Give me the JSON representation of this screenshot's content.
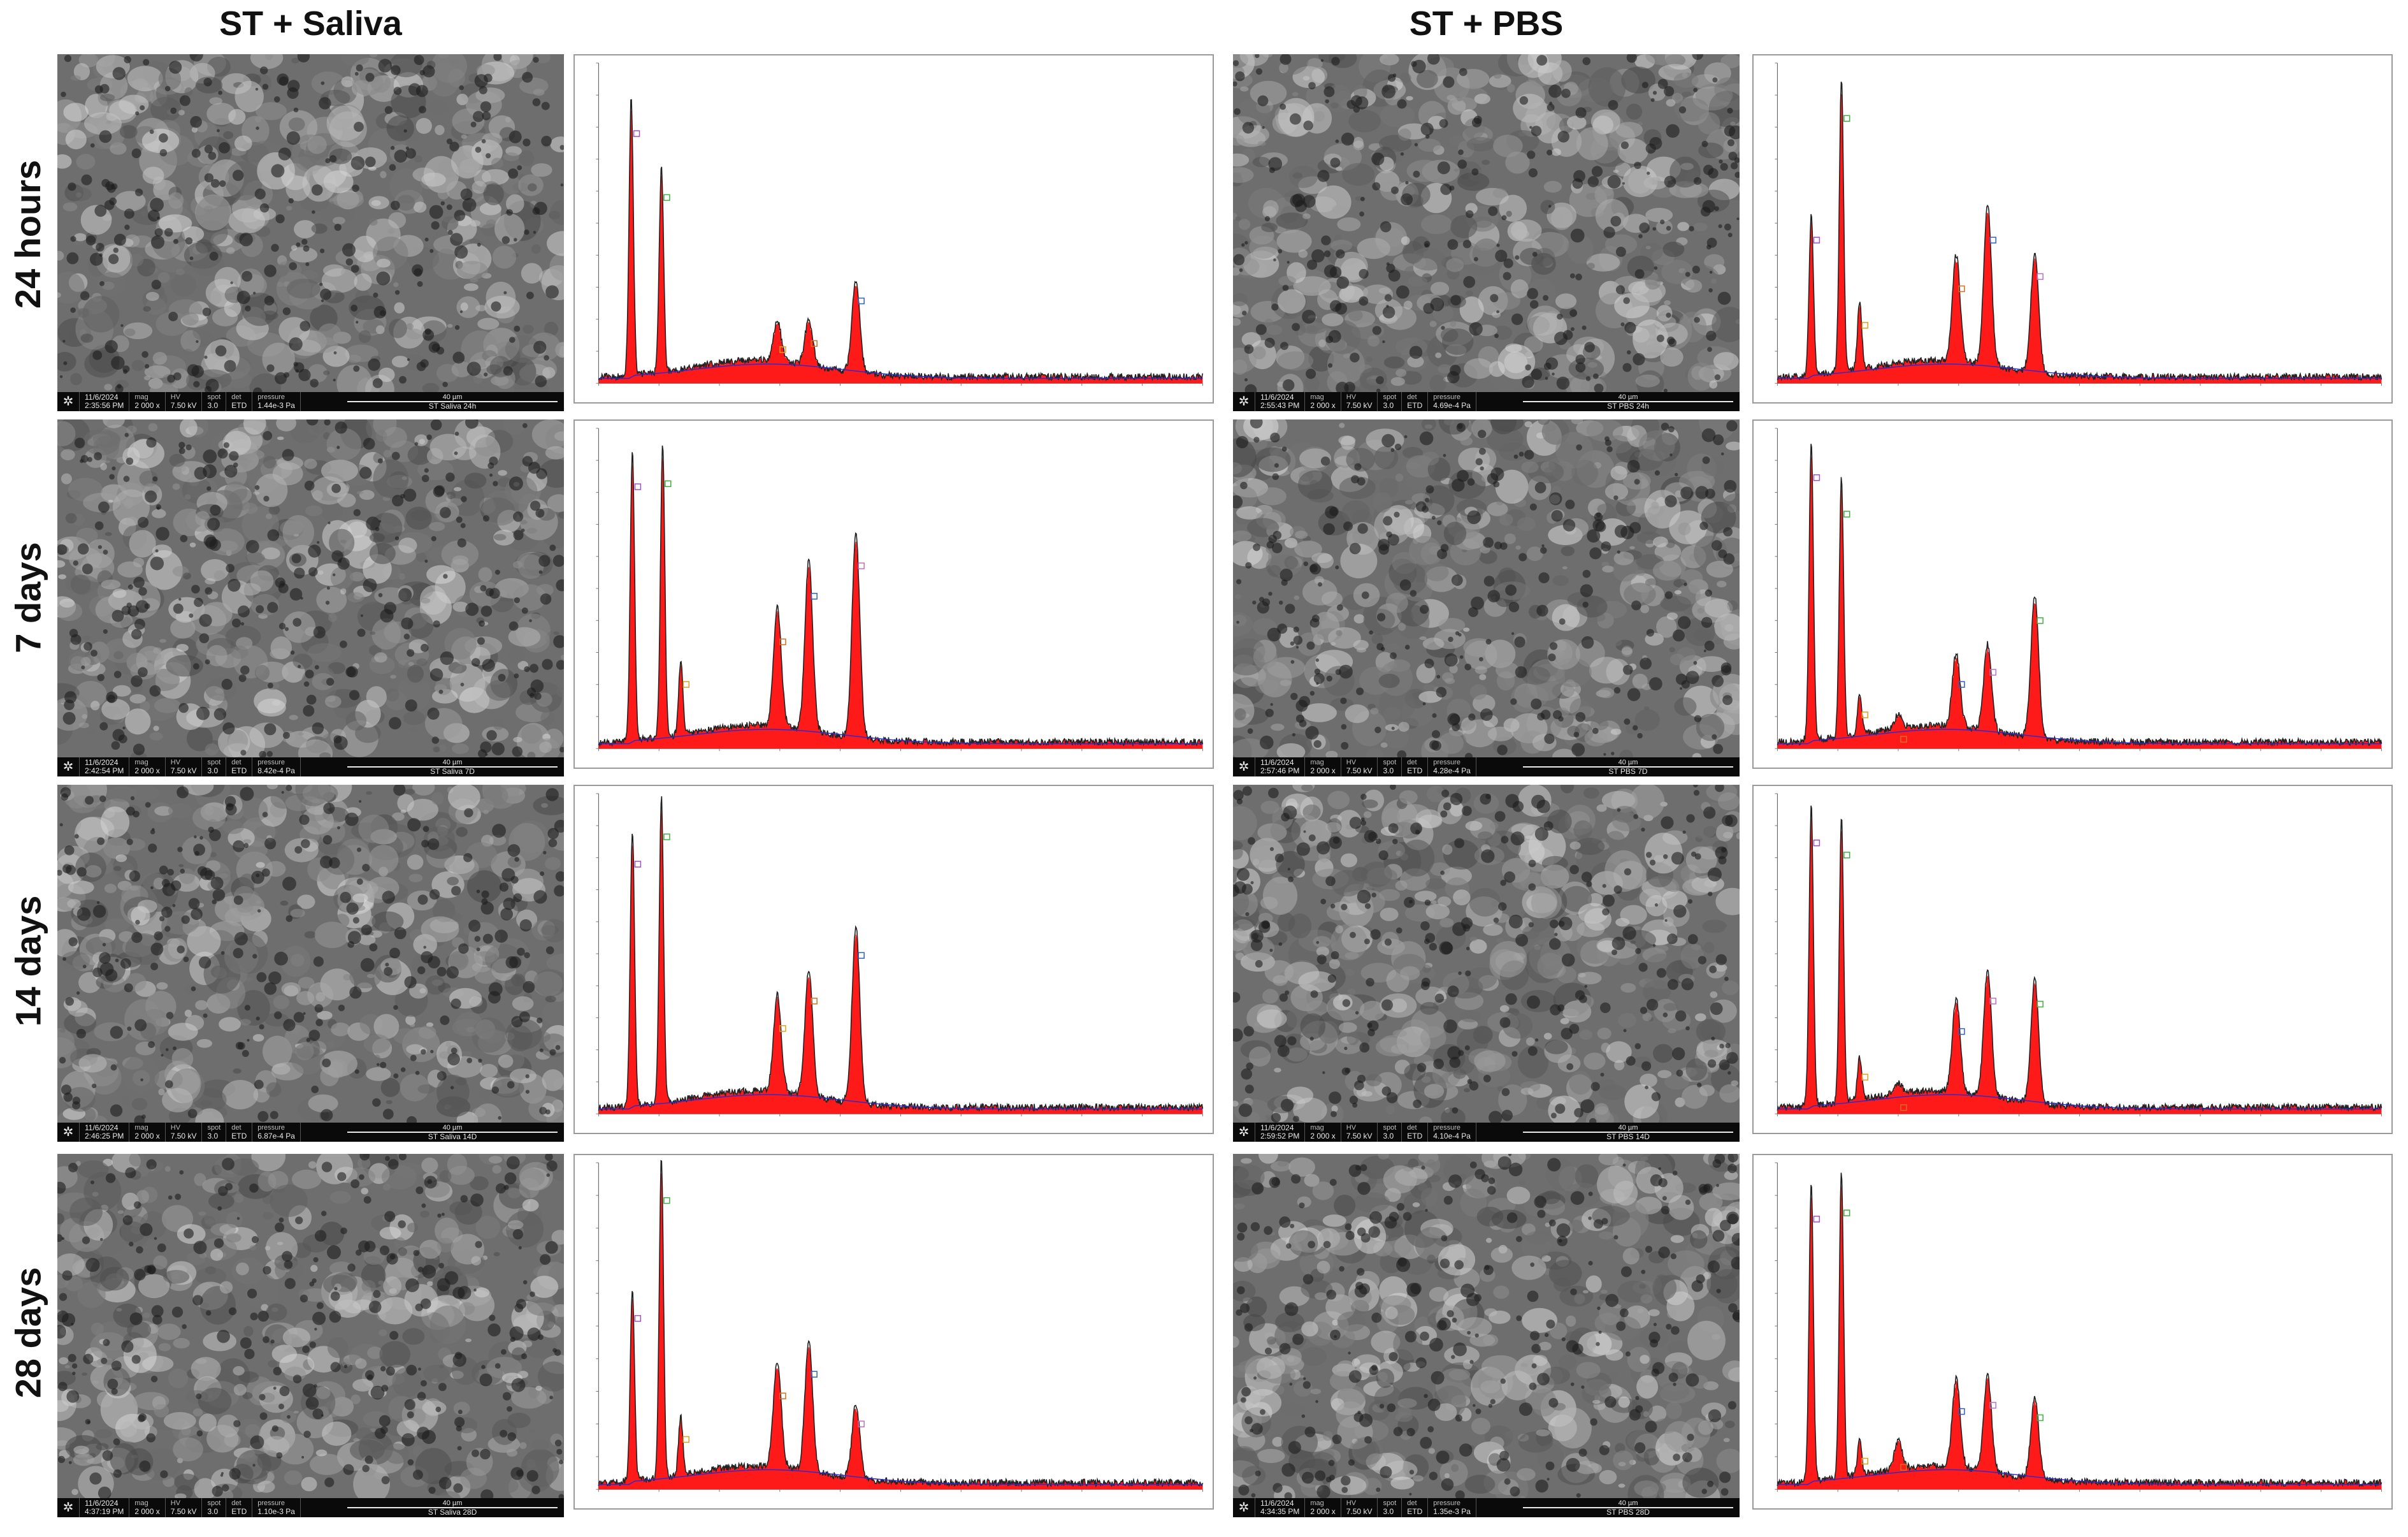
{
  "columns": [
    {
      "title": "ST + Saliva"
    },
    {
      "title": "ST + PBS"
    }
  ],
  "rows": [
    {
      "label": "24 hours"
    },
    {
      "label": "7 days"
    },
    {
      "label": "14 days"
    },
    {
      "label": "28 days"
    }
  ],
  "colors": {
    "spectrum_fill": "#ff1a1a",
    "spectrum_line": "#222222",
    "background_curve": "#2a2ad0",
    "sem_databar": "#0a0a0a"
  },
  "sem_images": [
    {
      "date": "11/6/2024",
      "time": "2:35:56 PM",
      "mag": "2 000 x",
      "hv": "7.50 kV",
      "spot": "3.0",
      "det": "ETD",
      "pressure": "1.44e-3 Pa",
      "scale": "40 µm",
      "sample": "ST Saliva 24h"
    },
    {
      "date": "11/6/2024",
      "time": "2:55:43 PM",
      "mag": "2 000 x",
      "hv": "7.50 kV",
      "spot": "3.0",
      "det": "ETD",
      "pressure": "4.69e-4 Pa",
      "scale": "40 µm",
      "sample": "ST PBS 24h"
    },
    {
      "date": "11/6/2024",
      "time": "2:42:54 PM",
      "mag": "2 000 x",
      "hv": "7.50 kV",
      "spot": "3.0",
      "det": "ETD",
      "pressure": "8.42e-4 Pa",
      "scale": "40 µm",
      "sample": "ST Saliva 7D"
    },
    {
      "date": "11/6/2024",
      "time": "2:57:46 PM",
      "mag": "2 000 x",
      "hv": "7.50 kV",
      "spot": "3.0",
      "det": "ETD",
      "pressure": "4.28e-4 Pa",
      "scale": "40 µm",
      "sample": "ST PBS 7D"
    },
    {
      "date": "11/6/2024",
      "time": "2:46:25 PM",
      "mag": "2 000 x",
      "hv": "7.50 kV",
      "spot": "3.0",
      "det": "ETD",
      "pressure": "6.87e-4 Pa",
      "scale": "40 µm",
      "sample": "ST Saliva 14D"
    },
    {
      "date": "11/6/2024",
      "time": "2:59:52 PM",
      "mag": "2 000 x",
      "hv": "7.50 kV",
      "spot": "3.0",
      "det": "ETD",
      "pressure": "4.10e-4 Pa",
      "scale": "40 µm",
      "sample": "ST PBS 14D"
    },
    {
      "date": "11/6/2024",
      "time": "4:37:19 PM",
      "mag": "2 000 x",
      "hv": "7.50 kV",
      "spot": "3.0",
      "det": "ETD",
      "pressure": "1.10e-3 Pa",
      "scale": "40 µm",
      "sample": "ST Saliva 28D"
    },
    {
      "date": "11/6/2024",
      "time": "4:34:35 PM",
      "mag": "2 000 x",
      "hv": "7.50 kV",
      "spot": "3.0",
      "det": "ETD",
      "pressure": "1.35e-3 Pa",
      "scale": "40 µm",
      "sample": "ST PBS 28D"
    }
  ],
  "chart_data": [
    {
      "type": "line",
      "title": "",
      "xlabel": "",
      "ylabel": "",
      "xlim": [
        0,
        5
      ],
      "ylim": [
        0,
        1
      ],
      "peaks": [
        {
          "x": 0.27,
          "y": 0.83
        },
        {
          "x": 0.52,
          "y": 0.62
        },
        {
          "x": 1.48,
          "y": 0.12
        },
        {
          "x": 1.74,
          "y": 0.14
        },
        {
          "x": 2.13,
          "y": 0.28
        }
      ]
    },
    {
      "type": "line",
      "title": "",
      "xlabel": "",
      "ylabel": "",
      "xlim": [
        0,
        5
      ],
      "ylim": [
        0,
        1
      ],
      "peaks": [
        {
          "x": 0.28,
          "y": 0.48
        },
        {
          "x": 0.53,
          "y": 0.88
        },
        {
          "x": 0.68,
          "y": 0.2
        },
        {
          "x": 1.48,
          "y": 0.32
        },
        {
          "x": 1.74,
          "y": 0.48
        },
        {
          "x": 2.13,
          "y": 0.36
        }
      ]
    },
    {
      "type": "line",
      "title": "",
      "xlabel": "",
      "ylabel": "",
      "xlim": [
        0,
        5
      ],
      "ylim": [
        0,
        1
      ],
      "peaks": [
        {
          "x": 0.28,
          "y": 0.87
        },
        {
          "x": 0.53,
          "y": 0.88
        },
        {
          "x": 0.68,
          "y": 0.22
        },
        {
          "x": 1.48,
          "y": 0.36
        },
        {
          "x": 1.74,
          "y": 0.51
        },
        {
          "x": 2.13,
          "y": 0.61
        }
      ]
    },
    {
      "type": "line",
      "title": "",
      "xlabel": "",
      "ylabel": "",
      "xlim": [
        0,
        5
      ],
      "ylim": [
        0,
        1
      ],
      "peaks": [
        {
          "x": 0.28,
          "y": 0.9
        },
        {
          "x": 0.53,
          "y": 0.78
        },
        {
          "x": 0.68,
          "y": 0.12
        },
        {
          "x": 1.0,
          "y": 0.04
        },
        {
          "x": 1.48,
          "y": 0.22
        },
        {
          "x": 1.74,
          "y": 0.26
        },
        {
          "x": 2.13,
          "y": 0.43
        }
      ]
    },
    {
      "type": "line",
      "title": "",
      "xlabel": "",
      "ylabel": "",
      "xlim": [
        0,
        5
      ],
      "ylim": [
        0,
        1
      ],
      "peaks": [
        {
          "x": 0.28,
          "y": 0.83
        },
        {
          "x": 0.52,
          "y": 0.92
        },
        {
          "x": 1.48,
          "y": 0.29
        },
        {
          "x": 1.74,
          "y": 0.38
        },
        {
          "x": 2.13,
          "y": 0.53
        }
      ]
    },
    {
      "type": "line",
      "title": "",
      "xlabel": "",
      "ylabel": "",
      "xlim": [
        0,
        5
      ],
      "ylim": [
        0,
        1
      ],
      "peaks": [
        {
          "x": 0.28,
          "y": 0.9
        },
        {
          "x": 0.53,
          "y": 0.86
        },
        {
          "x": 0.68,
          "y": 0.13
        },
        {
          "x": 1.0,
          "y": 0.03
        },
        {
          "x": 1.48,
          "y": 0.28
        },
        {
          "x": 1.74,
          "y": 0.38
        },
        {
          "x": 2.13,
          "y": 0.37
        }
      ]
    },
    {
      "type": "line",
      "title": "",
      "xlabel": "",
      "ylabel": "",
      "xlim": [
        0,
        5
      ],
      "ylim": [
        0,
        1
      ],
      "peaks": [
        {
          "x": 0.28,
          "y": 0.56
        },
        {
          "x": 0.52,
          "y": 0.94
        },
        {
          "x": 0.68,
          "y": 0.17
        },
        {
          "x": 1.48,
          "y": 0.31
        },
        {
          "x": 1.74,
          "y": 0.38
        },
        {
          "x": 2.13,
          "y": 0.22
        }
      ]
    },
    {
      "type": "line",
      "title": "",
      "xlabel": "",
      "ylabel": "",
      "xlim": [
        0,
        5
      ],
      "ylim": [
        0,
        1
      ],
      "peaks": [
        {
          "x": 0.28,
          "y": 0.88
        },
        {
          "x": 0.53,
          "y": 0.9
        },
        {
          "x": 0.68,
          "y": 0.1
        },
        {
          "x": 1.0,
          "y": 0.08
        },
        {
          "x": 1.48,
          "y": 0.26
        },
        {
          "x": 1.74,
          "y": 0.28
        },
        {
          "x": 2.13,
          "y": 0.24
        }
      ]
    }
  ]
}
